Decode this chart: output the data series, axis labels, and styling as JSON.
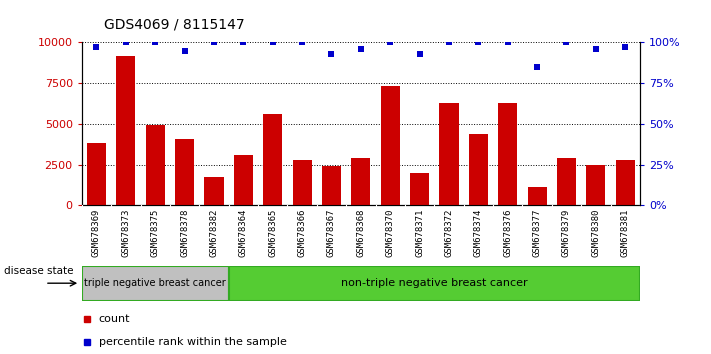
{
  "title": "GDS4069 / 8115147",
  "samples": [
    "GSM678369",
    "GSM678373",
    "GSM678375",
    "GSM678378",
    "GSM678382",
    "GSM678364",
    "GSM678365",
    "GSM678366",
    "GSM678367",
    "GSM678368",
    "GSM678370",
    "GSM678371",
    "GSM678372",
    "GSM678374",
    "GSM678376",
    "GSM678377",
    "GSM678379",
    "GSM678380",
    "GSM678381"
  ],
  "counts": [
    3800,
    9200,
    4950,
    4100,
    1750,
    3100,
    5600,
    2800,
    2400,
    2900,
    7300,
    2000,
    6300,
    4400,
    6300,
    1100,
    2900,
    2450,
    2800
  ],
  "percentile_ranks": [
    97,
    100,
    100,
    95,
    100,
    100,
    100,
    100,
    93,
    96,
    100,
    93,
    100,
    100,
    100,
    85,
    100,
    96,
    97
  ],
  "bar_color": "#cc0000",
  "dot_color": "#0000cc",
  "group1_label": "triple negative breast cancer",
  "group2_label": "non-triple negative breast cancer",
  "group1_count": 5,
  "group2_count": 14,
  "group1_color": "#c0c0c0",
  "group2_color": "#55cc33",
  "disease_state_label": "disease state",
  "legend_count_label": "count",
  "legend_pct_label": "percentile rank within the sample",
  "ylim": [
    0,
    10000
  ],
  "yticks": [
    0,
    2500,
    5000,
    7500,
    10000
  ],
  "y2ticks": [
    0,
    25,
    50,
    75,
    100
  ],
  "grid_color": "#000000",
  "bg_color": "#ffffff",
  "tick_label_color_left": "#cc0000",
  "tick_label_color_right": "#0000cc",
  "xtick_bg_color": "#d8d8d8"
}
